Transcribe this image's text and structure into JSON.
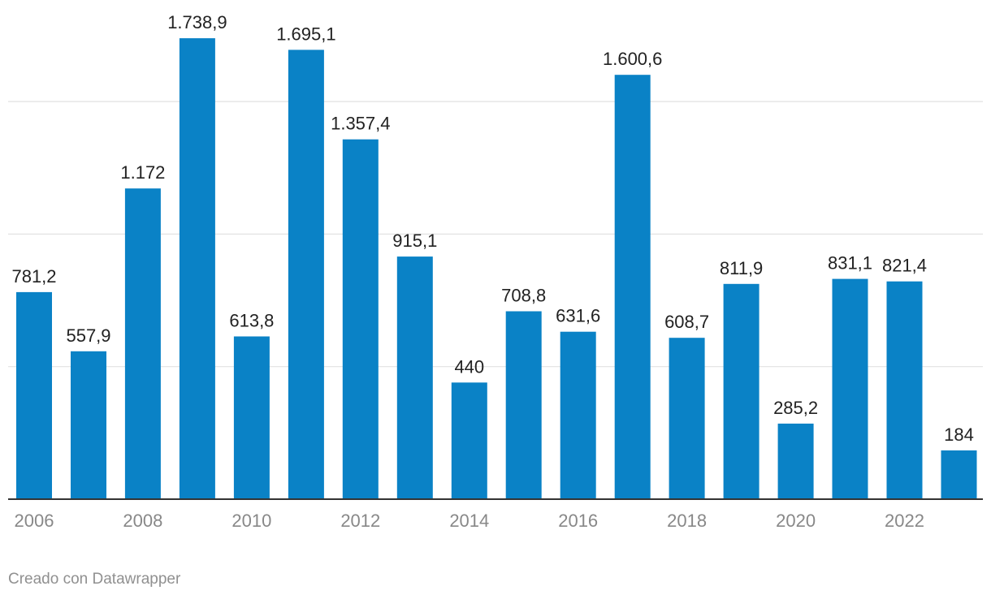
{
  "chart_data": {
    "type": "bar",
    "title": "",
    "xlabel": "",
    "ylabel": "",
    "categories": [
      "2006",
      "2007",
      "2008",
      "2009",
      "2010",
      "2011",
      "2012",
      "2013",
      "2014",
      "2015",
      "2016",
      "2017",
      "2018",
      "2019",
      "2020",
      "2021",
      "2022",
      "2023"
    ],
    "values": [
      781.2,
      557.9,
      1172,
      1738.9,
      613.8,
      1695.1,
      1357.4,
      915.1,
      440,
      708.8,
      631.6,
      1600.6,
      608.7,
      811.9,
      285.2,
      831.1,
      821.4,
      184
    ],
    "value_labels": [
      "781,2",
      "557,9",
      "1.172",
      "1.738,9",
      "613,8",
      "1.695,1",
      "1.357,4",
      "915,1",
      "440",
      "708,8",
      "631,6",
      "1.600,6",
      "608,7",
      "811,9",
      "285,2",
      "831,1",
      "821,4",
      "184"
    ],
    "x_tick_labels": [
      "2006",
      "",
      "2008",
      "",
      "2010",
      "",
      "2012",
      "",
      "2014",
      "",
      "2016",
      "",
      "2018",
      "",
      "2020",
      "",
      "2022",
      ""
    ],
    "ylim": [
      0,
      1700
    ],
    "gridlines": [
      500,
      1000,
      1500
    ],
    "grid": true,
    "bar_color": "#0a82c6"
  },
  "footer": {
    "credit": "Creado con Datawrapper"
  }
}
